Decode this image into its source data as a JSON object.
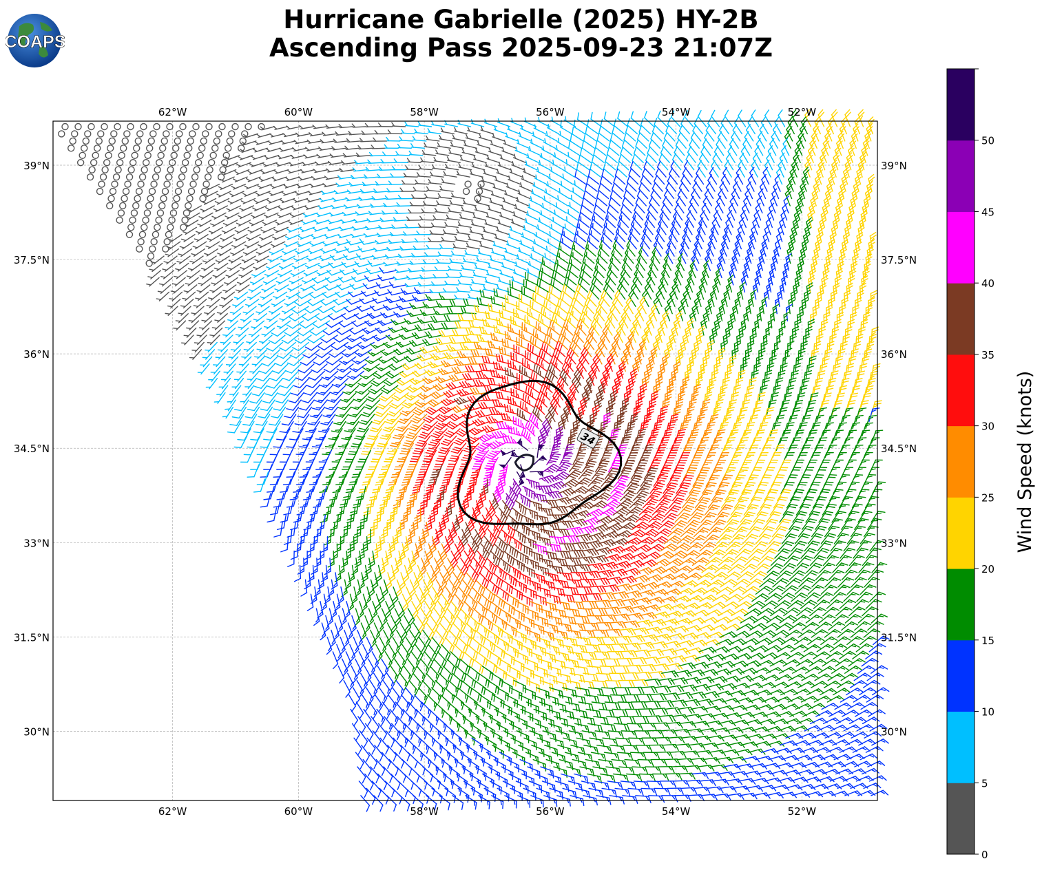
{
  "title": {
    "line1": "Hurricane Gabrielle (2025) HY-2B",
    "line2": "Ascending Pass 2025-09-23 21:07Z"
  },
  "logo": {
    "text": "COAPS",
    "icon": "globe-icon"
  },
  "map": {
    "lon_range": [
      -63.9,
      -50.8
    ],
    "lat_range": [
      28.9,
      39.7
    ],
    "lon_ticks": [
      -62,
      -60,
      -58,
      -56,
      -54,
      -52
    ],
    "lat_ticks": [
      30,
      31.5,
      33,
      34.5,
      36,
      37.5,
      39
    ],
    "lon_labels": [
      "62°W",
      "60°W",
      "58°W",
      "56°W",
      "54°W",
      "52°W"
    ],
    "lat_labels": [
      "30°N",
      "31.5°N",
      "33°N",
      "34.5°N",
      "36°N",
      "37.5°N",
      "39°N"
    ],
    "gridlines": true,
    "storm_center": {
      "lon": -56.4,
      "lat": 34.3
    },
    "contour": {
      "level_label": "34",
      "units": "knots"
    },
    "swath_west_edge": [
      [
        -63.9,
        39.7
      ],
      [
        -63.1,
        38.5
      ],
      [
        -62.0,
        36.9
      ],
      [
        -60.9,
        34.9
      ],
      [
        -60.0,
        32.7
      ],
      [
        -59.2,
        30.6
      ],
      [
        -59.0,
        28.9
      ]
    ]
  },
  "colorbar": {
    "label": "Wind Speed (knots)",
    "tick_labels": [
      "0",
      "5",
      "10",
      "15",
      "20",
      "25",
      "30",
      "35",
      "40",
      "45",
      "50"
    ],
    "colors": [
      "#555555",
      "#00bfff",
      "#0033ff",
      "#008c00",
      "#ffd400",
      "#ff8c00",
      "#ff0d0d",
      "#7b3a23",
      "#ff00ff",
      "#8b00b5",
      "#2a0060"
    ],
    "range": [
      0,
      55
    ]
  }
}
